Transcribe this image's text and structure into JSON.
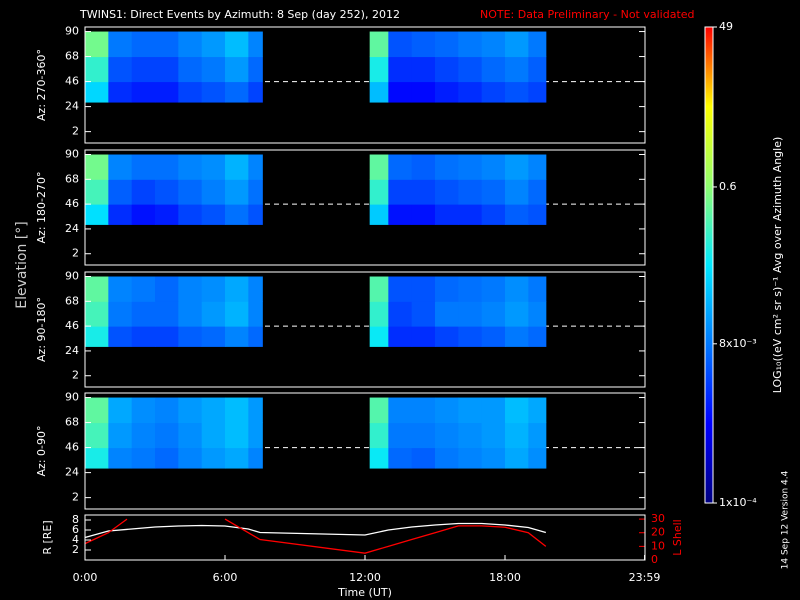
{
  "header": {
    "title": "TWINS1: Direct Events by Azimuth:  8 Sep (day 252), 2012",
    "note": "NOTE: Data Preliminary - Not validated",
    "ylabel": "Elevation [°]",
    "footer": "14 Sep 12   Version 4.4"
  },
  "colorbar": {
    "label": "LOG₁₀((eV cm² sr s)⁻¹ Avg over Azimuth Angle)",
    "scale": "log",
    "lim": [
      0.0001,
      49
    ],
    "ticks": [
      49,
      0.6,
      {
        "value": 0.008,
        "label": "8x10⁻³"
      },
      {
        "value": 0.0001,
        "label": "1x10⁻⁴"
      }
    ],
    "colors": [
      "#000080",
      "#0000ff",
      "#0078ff",
      "#00e8ff",
      "#90ff70",
      "#ffff00",
      "#ff0000"
    ]
  },
  "chart_data": [
    {
      "type": "heatmap",
      "ylabel": "Az: 270-360°",
      "xlim": [
        0,
        24
      ],
      "ylim": [
        -8,
        94
      ],
      "yticks": [
        2,
        24,
        46,
        68,
        90
      ],
      "hline": 46,
      "x_bins": [
        0,
        1,
        2,
        3,
        4,
        5,
        6,
        7,
        7.6,
        12.2,
        13,
        14,
        15,
        16,
        17,
        18,
        19,
        19.75
      ],
      "y_bins": [
        28,
        46,
        68,
        90
      ],
      "z": [
        [
          0.05,
          0.002,
          0.0015,
          0.0015,
          0.003,
          0.004,
          0.006,
          0.003,
          null,
          0.03,
          0.001,
          0.001,
          0.0015,
          0.002,
          0.003,
          0.004,
          0.003
        ],
        [
          0.15,
          0.004,
          0.003,
          0.003,
          0.006,
          0.008,
          0.015,
          0.006,
          null,
          0.1,
          0.002,
          0.002,
          0.003,
          0.004,
          0.006,
          0.008,
          0.005
        ],
        [
          0.4,
          0.008,
          0.006,
          0.006,
          0.01,
          0.015,
          0.03,
          0.01,
          null,
          0.3,
          0.004,
          0.005,
          0.006,
          0.008,
          0.01,
          0.015,
          0.008
        ]
      ]
    },
    {
      "type": "heatmap",
      "ylabel": "Az: 180-270°",
      "xlim": [
        0,
        24
      ],
      "ylim": [
        -8,
        94
      ],
      "yticks": [
        2,
        24,
        46,
        68,
        90
      ],
      "hline": 46,
      "x_bins": [
        0,
        1,
        2,
        3,
        4,
        5,
        6,
        7,
        7.6,
        12.2,
        13,
        14,
        15,
        16,
        17,
        18,
        19,
        19.75
      ],
      "y_bins": [
        28,
        46,
        68,
        90
      ],
      "z": [
        [
          0.06,
          0.002,
          0.0012,
          0.0015,
          0.003,
          0.004,
          0.007,
          0.004,
          null,
          0.04,
          0.0012,
          0.0012,
          0.002,
          0.002,
          0.003,
          0.005,
          0.004
        ],
        [
          0.2,
          0.005,
          0.003,
          0.004,
          0.006,
          0.009,
          0.015,
          0.007,
          null,
          0.15,
          0.003,
          0.003,
          0.004,
          0.005,
          0.006,
          0.01,
          0.006
        ],
        [
          0.4,
          0.01,
          0.007,
          0.007,
          0.01,
          0.012,
          0.025,
          0.01,
          null,
          0.3,
          0.006,
          0.005,
          0.007,
          0.008,
          0.01,
          0.015,
          0.01
        ]
      ]
    },
    {
      "type": "heatmap",
      "ylabel": "Az: 90-180°",
      "xlim": [
        0,
        24
      ],
      "ylim": [
        -8,
        94
      ],
      "yticks": [
        2,
        24,
        46,
        68,
        90
      ],
      "hline": 46,
      "x_bins": [
        0,
        1,
        2,
        3,
        4,
        5,
        6,
        7,
        7.6,
        12.2,
        13,
        14,
        15,
        16,
        17,
        18,
        19,
        19.75
      ],
      "y_bins": [
        28,
        46,
        68,
        90
      ],
      "z": [
        [
          0.1,
          0.004,
          0.003,
          0.003,
          0.005,
          0.006,
          0.01,
          0.006,
          null,
          0.08,
          0.002,
          0.002,
          0.003,
          0.004,
          0.005,
          0.008,
          0.006
        ],
        [
          0.2,
          0.008,
          0.006,
          0.006,
          0.01,
          0.015,
          0.025,
          0.01,
          null,
          0.15,
          0.003,
          0.004,
          0.008,
          0.008,
          0.01,
          0.015,
          0.01
        ],
        [
          0.3,
          0.01,
          0.008,
          0.006,
          0.01,
          0.012,
          0.02,
          0.01,
          null,
          0.25,
          0.004,
          0.004,
          0.006,
          0.007,
          0.008,
          0.012,
          0.008
        ]
      ]
    },
    {
      "type": "heatmap",
      "ylabel": "Az: 0-90°",
      "xlim": [
        0,
        24
      ],
      "ylim": [
        -8,
        94
      ],
      "yticks": [
        2,
        24,
        46,
        68,
        90
      ],
      "hline": 46,
      "x_bins": [
        0,
        1,
        2,
        3,
        4,
        5,
        6,
        7,
        7.6,
        12.2,
        13,
        14,
        15,
        16,
        17,
        18,
        19,
        19.75
      ],
      "y_bins": [
        28,
        46,
        68,
        90
      ],
      "z": [
        [
          0.1,
          0.01,
          0.008,
          0.006,
          0.01,
          0.015,
          0.02,
          0.01,
          null,
          0.08,
          0.006,
          0.005,
          0.008,
          0.01,
          0.012,
          0.02,
          0.012
        ],
        [
          0.2,
          0.015,
          0.01,
          0.008,
          0.012,
          0.02,
          0.03,
          0.015,
          null,
          0.15,
          0.008,
          0.008,
          0.01,
          0.012,
          0.015,
          0.025,
          0.015
        ],
        [
          0.3,
          0.02,
          0.012,
          0.01,
          0.015,
          0.02,
          0.03,
          0.015,
          null,
          0.25,
          0.01,
          0.01,
          0.012,
          0.015,
          0.015,
          0.03,
          0.02
        ]
      ]
    },
    {
      "type": "line",
      "xlim": [
        0,
        24
      ],
      "xlabel": "Time (UT)",
      "xticks": [
        {
          "value": 0,
          "label": "0:00"
        },
        {
          "value": 6,
          "label": "6:00"
        },
        {
          "value": 12,
          "label": "12:00"
        },
        {
          "value": 18,
          "label": "18:00"
        },
        {
          "value": 23.98,
          "label": "23:59"
        }
      ],
      "ylabel": "R [RE]",
      "ylim": [
        0,
        9
      ],
      "yticks": [
        2,
        4,
        6,
        8
      ],
      "y2label": "L Shell",
      "y2lim": [
        0,
        33
      ],
      "y2ticks": [
        0,
        10,
        20,
        30
      ],
      "series": [
        {
          "name": "R",
          "color": "#ffffff",
          "x": [
            0,
            1,
            2,
            3,
            4,
            5,
            6,
            7,
            7.5,
            12,
            13,
            14,
            15,
            16,
            17,
            18,
            19,
            19.75
          ],
          "values": [
            4.5,
            5.8,
            6.2,
            6.6,
            6.8,
            6.9,
            6.8,
            6.2,
            5.5,
            5,
            6,
            6.6,
            7,
            7.3,
            7.3,
            7,
            6.5,
            5.5
          ]
        },
        {
          "name": "L Shell",
          "color": "#ff0000",
          "axis": "y2",
          "x": [
            0,
            1,
            1.8,
            4,
            6,
            7.5,
            12,
            13,
            14,
            15,
            16,
            17,
            18,
            19,
            19.75
          ],
          "values": [
            12,
            20,
            30,
            null,
            30,
            15,
            5,
            10,
            15,
            20,
            25,
            25,
            24,
            20,
            10
          ]
        }
      ]
    }
  ]
}
